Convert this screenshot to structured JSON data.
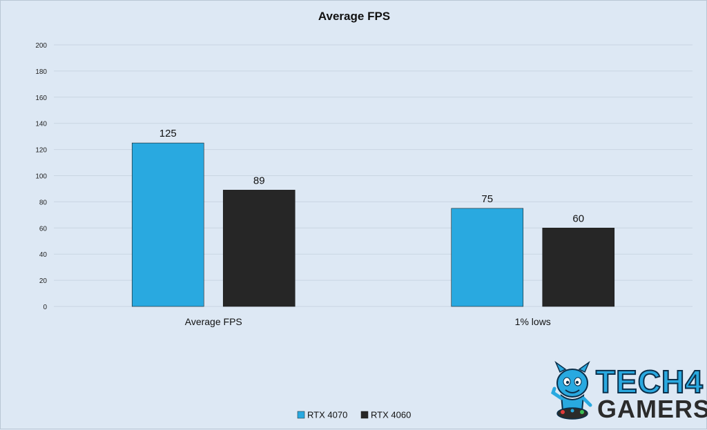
{
  "chart_data": {
    "type": "bar",
    "title": "Average FPS",
    "categories": [
      "Average FPS",
      "1% lows"
    ],
    "series": [
      {
        "name": "RTX 4070",
        "values": [
          125,
          75
        ],
        "color": "#29a9e0"
      },
      {
        "name": "RTX 4060",
        "values": [
          89,
          60
        ],
        "color": "#262626"
      }
    ],
    "ylim": [
      0,
      200
    ],
    "yticks": [
      0,
      20,
      40,
      60,
      80,
      100,
      120,
      140,
      160,
      180,
      200
    ],
    "xlabel": "",
    "ylabel": "",
    "grid": true,
    "legend_position": "bottom"
  },
  "logo": {
    "line1": "TECH4",
    "line2": "GAMERS",
    "icon": "devil-mascot-icon",
    "colors": {
      "primary": "#29a9e0",
      "dark": "#2b2b2b"
    }
  },
  "colors": {
    "background": "#dde8f4",
    "gridline": "#c9d5e2"
  }
}
